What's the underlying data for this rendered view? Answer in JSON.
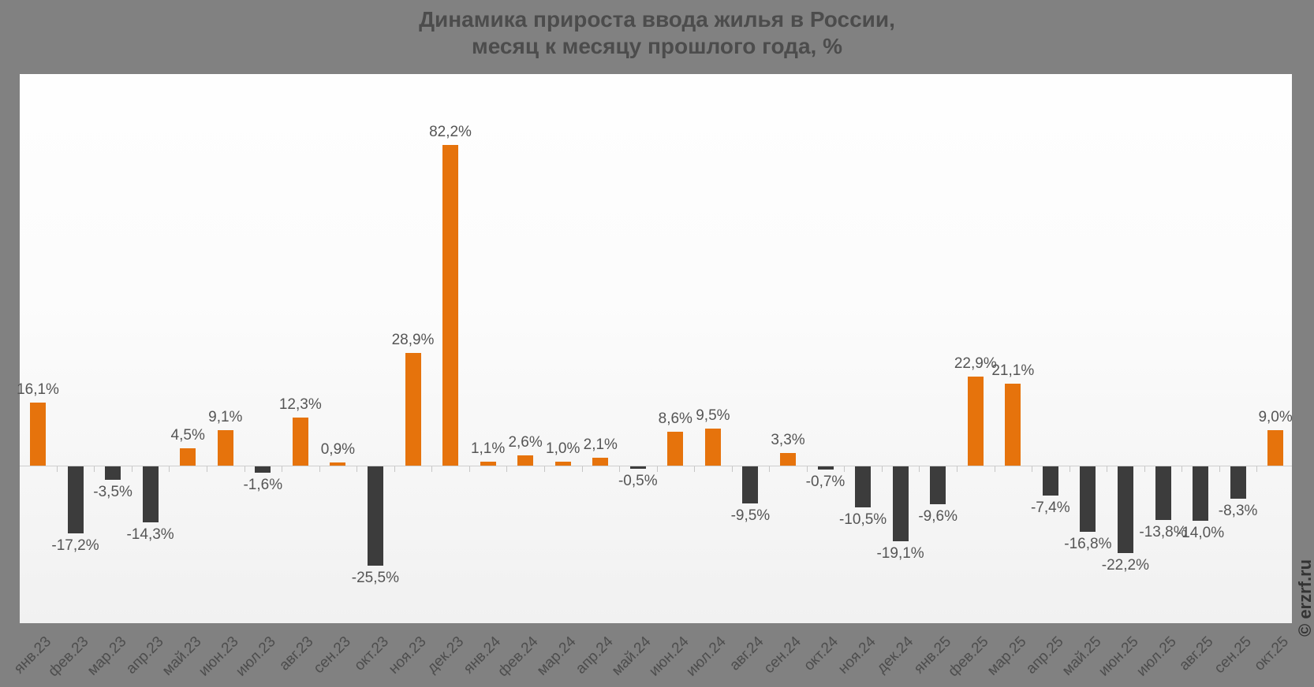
{
  "header": {
    "line1": "Динамика прироста ввода жилья в России,",
    "line2": "месяц к месяцу прошлого года, %"
  },
  "watermark": "© erzrf.ru",
  "colors": {
    "positive_bar": "#E6730C",
    "negative_bar": "#3C3C3C",
    "page_background": "#818181",
    "axis_line": "#CFCFCF",
    "value_label": "#555555",
    "axis_label": "#4D4D4D",
    "title_text": "#4C4C4C",
    "watermark_text": "#333333"
  },
  "chart_data": {
    "type": "bar",
    "title": "Динамика прироста ввода жилья в России, месяц к месяцу прошлого года, %",
    "categories": [
      "янв.23",
      "фев.23",
      "мар.23",
      "апр.23",
      "май.23",
      "июн.23",
      "июл.23",
      "авг.23",
      "сен.23",
      "окт.23",
      "ноя.23",
      "дек.23",
      "янв.24",
      "фев.24",
      "мар.24",
      "апр.24",
      "май.24",
      "июн.24",
      "июл.24",
      "авг.24",
      "сен.24",
      "окт.24",
      "ноя.24",
      "дек.24",
      "янв.25",
      "фев.25",
      "мар.25",
      "апр.25",
      "май.25",
      "июн.25",
      "июл.25",
      "авг.25",
      "сен.25",
      "окт.25"
    ],
    "values": [
      16.1,
      -17.2,
      -3.5,
      -14.3,
      4.5,
      9.1,
      -1.6,
      12.3,
      0.9,
      -25.5,
      28.9,
      82.2,
      1.1,
      2.6,
      1.0,
      2.1,
      -0.5,
      8.6,
      9.5,
      -9.5,
      3.3,
      -0.7,
      -10.5,
      -19.1,
      -9.6,
      22.9,
      21.1,
      -7.4,
      -16.8,
      -22.2,
      -13.8,
      -14.0,
      -8.3,
      9.0
    ],
    "value_labels": [
      "16,1%",
      "-17,2%",
      "-3,5%",
      "-14,3%",
      "4,5%",
      "9,1%",
      "-1,6%",
      "12,3%",
      "0,9%",
      "-25,5%",
      "28,9%",
      "82,2%",
      "1,1%",
      "2,6%",
      "1,0%",
      "2,1%",
      "-0,5%",
      "8,6%",
      "9,5%",
      "-9,5%",
      "3,3%",
      "-0,7%",
      "-10,5%",
      "-19,1%",
      "-9,6%",
      "22,9%",
      "21,1%",
      "-7,4%",
      "-16,8%",
      "-22,2%",
      "-13,8%",
      "-14,0%",
      "-8,3%",
      "9,0%"
    ],
    "xlabel": "",
    "ylabel": "",
    "ylim": [
      -30,
      95
    ],
    "grid": false,
    "legend": "none",
    "color_rule": "positive values orange, negative values dark gray"
  }
}
